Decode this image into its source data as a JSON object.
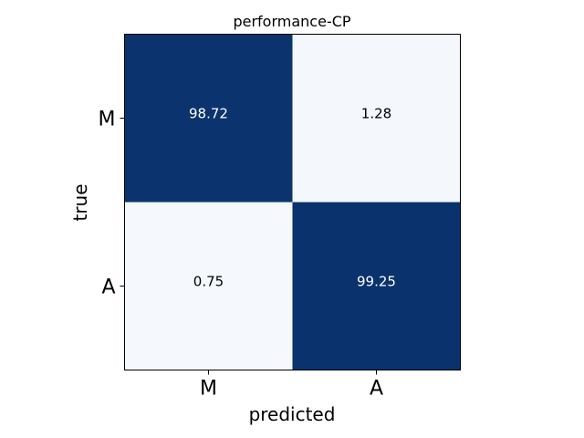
{
  "chart_data": {
    "type": "heatmap",
    "title": "performance-CP",
    "xlabel": "predicted",
    "ylabel": "true",
    "x_categories": [
      "M",
      "A"
    ],
    "y_categories": [
      "M",
      "A"
    ],
    "values": [
      [
        98.72,
        1.28
      ],
      [
        0.75,
        99.25
      ]
    ],
    "value_labels": [
      [
        "98.72",
        "1.28"
      ],
      [
        "0.75",
        "99.25"
      ]
    ],
    "colormap": "Blues",
    "color_low": "#f7fbff",
    "color_high": "#08306b",
    "text_dark": "#000000",
    "text_light": "#ffffff",
    "vmin": 0,
    "vmax": 100,
    "grid": false
  }
}
